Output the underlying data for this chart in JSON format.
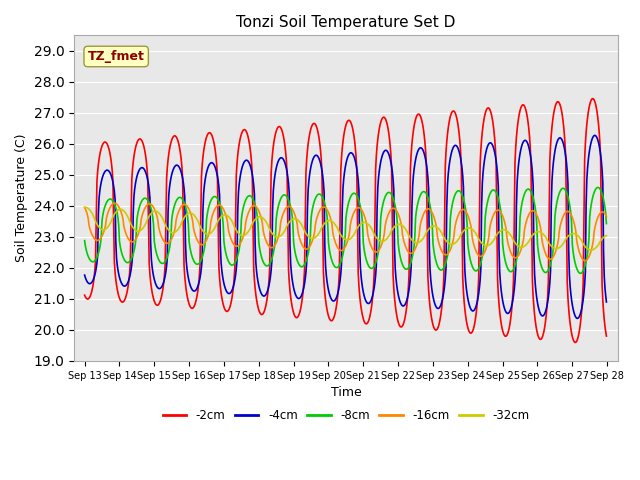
{
  "title": "Tonzi Soil Temperature Set D",
  "xlabel": "Time",
  "ylabel": "Soil Temperature (C)",
  "ylim": [
    19.0,
    29.5
  ],
  "yticks": [
    19.0,
    20.0,
    21.0,
    22.0,
    23.0,
    24.0,
    25.0,
    26.0,
    27.0,
    28.0,
    29.0
  ],
  "annotation_text": "TZ_fmet",
  "annotation_color": "#8B0000",
  "annotation_bg": "#FFFFC0",
  "annotation_edge": "#999944",
  "bg_color": "#E8E8E8",
  "series_colors": [
    "#FF0000",
    "#0000CC",
    "#00CC00",
    "#FF8800",
    "#CCCC00"
  ],
  "series_labels": [
    "-2cm",
    "-4cm",
    "-8cm",
    "-16cm",
    "-32cm"
  ],
  "n_days": 15,
  "start_day": 13,
  "end_day": 28,
  "figsize": [
    6.4,
    4.8
  ],
  "dpi": 100
}
